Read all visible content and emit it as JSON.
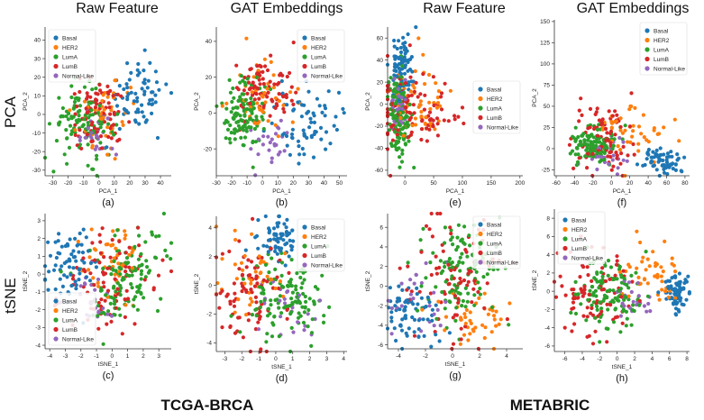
{
  "column_titles": [
    "Raw Feature",
    "GAT Embeddings",
    "Raw Feature",
    "GAT Embeddings"
  ],
  "row_titles": [
    "PCA",
    "tSNE"
  ],
  "dataset_titles": [
    "TCGA-BRCA",
    "METABRIC"
  ],
  "colors": {
    "Basal": "#1f77b4",
    "HER2": "#ff7f0e",
    "LumA": "#2ca02c",
    "LumB": "#d62728",
    "Normal-Like": "#9467bd"
  },
  "chart_data": [
    {
      "type": "scatter",
      "panel_label": "(a)",
      "xlabel": "PCA_1",
      "ylabel": "PCA_2",
      "xlim": [
        -35,
        47
      ],
      "ylim": [
        -33,
        47
      ],
      "xticks": [
        -30,
        -20,
        -10,
        0,
        10,
        20,
        30,
        40
      ],
      "yticks": [
        -30,
        -20,
        -10,
        0,
        10,
        20,
        30,
        40
      ],
      "legend": [
        "Basal",
        "HER2",
        "LumA",
        "LumB",
        "Normal-Like"
      ],
      "clusters": {
        "Basal": [
          25,
          10,
          10,
          10
        ],
        "HER2": [
          5,
          0,
          10,
          9
        ],
        "LumA": [
          -10,
          -5,
          10,
          9
        ],
        "LumB": [
          0,
          0,
          9,
          9
        ],
        "Normal-Like": [
          -2,
          -10,
          7,
          6
        ]
      }
    },
    {
      "type": "scatter",
      "panel_label": "(b)",
      "xlabel": "PCA_1",
      "ylabel": "PCA_2",
      "xlim": [
        -30,
        55
      ],
      "ylim": [
        -35,
        48
      ],
      "xticks": [
        -30,
        -20,
        -10,
        0,
        10,
        20,
        30,
        40,
        50
      ],
      "yticks": [
        -20,
        0,
        20,
        40
      ],
      "legend": [
        "Basal",
        "HER2",
        "LumA",
        "LumB",
        "Normal-Like"
      ],
      "clusters": {
        "Basal": [
          30,
          -5,
          10,
          10
        ],
        "HER2": [
          0,
          10,
          10,
          10
        ],
        "LumA": [
          -12,
          0,
          7,
          10
        ],
        "LumB": [
          0,
          15,
          10,
          10
        ],
        "Normal-Like": [
          5,
          -18,
          8,
          6
        ]
      }
    },
    {
      "type": "scatter",
      "panel_label": "(e)",
      "xlabel": "PCA_1",
      "ylabel": "PCA_2",
      "xlim": [
        -30,
        205
      ],
      "ylim": [
        -65,
        70
      ],
      "xticks": [
        0,
        50,
        100,
        150,
        200
      ],
      "yticks": [
        -60,
        -40,
        -20,
        0,
        20,
        40,
        60
      ],
      "legend": [
        "Basal",
        "HER2",
        "LumA",
        "LumB",
        "Normal-Like"
      ],
      "clusters": {
        "Basal": [
          -5,
          35,
          10,
          15
        ],
        "HER2": [
          25,
          0,
          30,
          20
        ],
        "LumA": [
          -10,
          -10,
          8,
          20
        ],
        "LumB": [
          15,
          -10,
          40,
          20
        ],
        "Normal-Like": [
          -10,
          0,
          8,
          12
        ]
      }
    },
    {
      "type": "scatter",
      "panel_label": "(f)",
      "xlabel": "PCA_1",
      "ylabel": "PCA_2",
      "xlim": [
        -62,
        85
      ],
      "ylim": [
        -32,
        152
      ],
      "xticks": [
        -60,
        -40,
        -20,
        0,
        20,
        40,
        60,
        80
      ],
      "yticks": [
        -25,
        0,
        25,
        50,
        75,
        100,
        125,
        150
      ],
      "legend": [
        "Basal",
        "HER2",
        "LumA",
        "LumB",
        "Normal-Like"
      ],
      "clusters": {
        "Basal": [
          55,
          -15,
          10,
          8
        ],
        "HER2": [
          25,
          20,
          18,
          20
        ],
        "LumA": [
          -20,
          5,
          12,
          12
        ],
        "LumB": [
          -10,
          10,
          15,
          20
        ],
        "Normal-Like": [
          -5,
          -5,
          12,
          10
        ]
      }
    },
    {
      "type": "scatter",
      "panel_label": "(c)",
      "xlabel": "tSNE_1",
      "ylabel": "tSNE_2",
      "xlim": [
        -4.3,
        3.8
      ],
      "ylim": [
        -4.2,
        3.4
      ],
      "xticks": [
        -4,
        -3,
        -2,
        -1,
        0,
        1,
        2,
        3
      ],
      "yticks": [
        -4,
        -3,
        -2,
        -1,
        0,
        1,
        2,
        3
      ],
      "legend": [
        "Basal",
        "HER2",
        "LumA",
        "LumB",
        "Normal-Like"
      ],
      "clusters": {
        "Basal": [
          -2.8,
          0.6,
          0.8,
          1.0
        ],
        "HER2": [
          0.3,
          0.8,
          1.0,
          1.2
        ],
        "LumA": [
          0.8,
          -0.3,
          1.2,
          1.4
        ],
        "LumB": [
          -0.2,
          -0.3,
          1.4,
          1.4
        ],
        "Normal-Like": [
          -1.2,
          -1.3,
          0.6,
          0.8
        ]
      }
    },
    {
      "type": "scatter",
      "panel_label": "(d)",
      "xlabel": "tSNE_1",
      "ylabel": "tSNE_2",
      "xlim": [
        -3.5,
        4.2
      ],
      "ylim": [
        -4.6,
        4.8
      ],
      "xticks": [
        -3,
        -2,
        -1,
        0,
        1,
        2,
        3,
        4
      ],
      "yticks": [
        -4,
        -2,
        0,
        2,
        4
      ],
      "legend": [
        "Basal",
        "HER2",
        "LumA",
        "LumB",
        "Normal-Like"
      ],
      "clusters": {
        "Basal": [
          0.2,
          3.2,
          0.6,
          0.8
        ],
        "HER2": [
          -1.5,
          1.0,
          1.0,
          1.2
        ],
        "LumA": [
          0.8,
          -1.0,
          1.2,
          1.4
        ],
        "LumB": [
          -1.5,
          -0.5,
          1.1,
          1.8
        ],
        "Normal-Like": [
          0.5,
          -1.5,
          1.0,
          1.2
        ]
      }
    },
    {
      "type": "scatter",
      "panel_label": "(g)",
      "xlabel": "tSNE_1",
      "ylabel": "tSNE_2",
      "xlim": [
        -4.8,
        5.2
      ],
      "ylim": [
        -6.4,
        7.4
      ],
      "xticks": [
        -4,
        -2,
        0,
        2,
        4
      ],
      "yticks": [
        -6,
        -4,
        -2,
        0,
        2,
        4,
        6
      ],
      "legend": [
        "Basal",
        "HER2",
        "LumA",
        "LumB",
        "Normal-Like"
      ],
      "clusters": {
        "Basal": [
          -3.0,
          -3.0,
          1.0,
          1.5
        ],
        "HER2": [
          1.5,
          -3.0,
          1.5,
          1.5
        ],
        "LumA": [
          0.5,
          1.5,
          1.5,
          2.5
        ],
        "LumB": [
          0.0,
          1.0,
          2.0,
          3.0
        ],
        "Normal-Like": [
          -2.5,
          -1.0,
          1.0,
          2.0
        ]
      }
    },
    {
      "type": "scatter",
      "panel_label": "(h)",
      "xlabel": "tSNE_1",
      "ylabel": "tSNE_2",
      "xlim": [
        -7.2,
        8.3
      ],
      "ylim": [
        -6.6,
        9
      ],
      "xticks": [
        -6,
        -4,
        -2,
        0,
        2,
        4,
        6,
        8
      ],
      "yticks": [
        -6,
        -4,
        -2,
        0,
        2,
        4,
        6,
        8
      ],
      "legend": [
        "Basal",
        "HER2",
        "LumA",
        "LumB",
        "Normal-Like"
      ],
      "clusters": {
        "Basal": [
          7.0,
          0.0,
          0.7,
          1.0
        ],
        "HER2": [
          4.0,
          2.0,
          1.5,
          2.0
        ],
        "LumA": [
          -1.0,
          0.0,
          2.0,
          2.0
        ],
        "LumB": [
          -3.0,
          0.0,
          2.0,
          2.5
        ],
        "Normal-Like": [
          1.5,
          -1.0,
          1.3,
          1.5
        ]
      }
    }
  ]
}
